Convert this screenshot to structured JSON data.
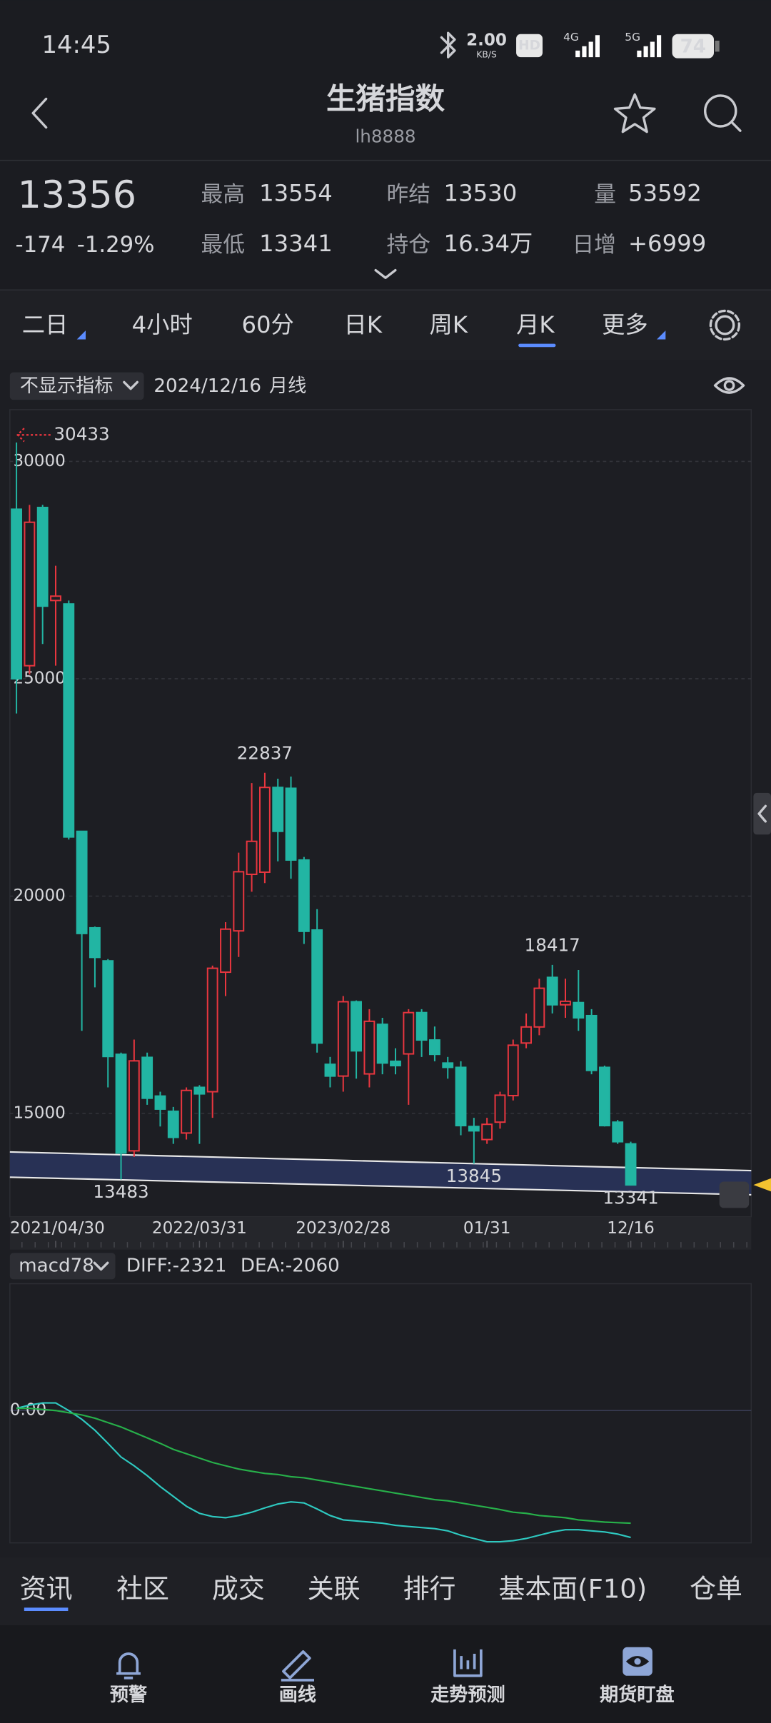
{
  "status_bar": {
    "time": "14:45",
    "speed": "2.00",
    "speed_unit": "KB/S",
    "hd": "HD",
    "net1": "4G",
    "net2": "5G",
    "battery": "74"
  },
  "header": {
    "title": "生猪指数",
    "code": "lh8888"
  },
  "quote": {
    "last": 13356,
    "change": -174,
    "change_pct": "-1.29%",
    "high_label": "最高",
    "high": 13554,
    "low_label": "最低",
    "low": 13341,
    "prev_label": "昨结",
    "prev": 13530,
    "oi_label": "持仓",
    "oi": "16.34万",
    "vol_label": "量",
    "vol": 53592,
    "daily_label": "日增",
    "daily": "+6999"
  },
  "periods": {
    "items": [
      "二日",
      "4小时",
      "60分",
      "日K",
      "周K",
      "月K",
      "更多"
    ],
    "active": 5
  },
  "toolbar": {
    "indicator": "不显示指标",
    "date": "2024/12/16",
    "period": "月线"
  },
  "kline": {
    "type": "candlestick",
    "up_color": "#e8363f",
    "down_color": "#22b5a3",
    "categories": [
      null,
      null,
      null,
      "2021/04/30",
      null,
      null,
      null,
      null,
      null,
      null,
      null,
      null,
      null,
      null,
      "2022/03/31",
      null,
      null,
      null,
      null,
      null,
      null,
      null,
      null,
      null,
      null,
      "2023/02/28",
      null,
      null,
      null,
      null,
      null,
      null,
      null,
      null,
      null,
      null,
      "01/31",
      null,
      null,
      null,
      null,
      null,
      null,
      null,
      null,
      null,
      null,
      "12/16"
    ],
    "open": [
      28900,
      25300,
      28940,
      26800,
      26720,
      21490,
      19270,
      18510,
      16360,
      14140,
      16290,
      15400,
      15050,
      14550,
      15600,
      15500,
      18250,
      19200,
      20500,
      20550,
      22500,
      22480,
      20830,
      19220,
      16130,
      15860,
      17570,
      15910,
      17050,
      16200,
      16370,
      17320,
      16690,
      16160,
      16060,
      14700,
      14400,
      14800,
      15410,
      16620,
      16990,
      18130,
      17500,
      17550,
      17250,
      16060,
      14800,
      14300
    ],
    "high": [
      30433,
      29000,
      29000,
      27600,
      26800,
      21500,
      19300,
      18550,
      16400,
      16700,
      16400,
      15500,
      15150,
      15600,
      15650,
      18400,
      19400,
      21000,
      22600,
      22837,
      22700,
      22750,
      20900,
      19700,
      16300,
      17700,
      17600,
      17400,
      17200,
      16500,
      17400,
      17400,
      17000,
      16300,
      16200,
      14900,
      14900,
      15500,
      16700,
      17300,
      18100,
      18417,
      18100,
      18300,
      17400,
      16100,
      14850,
      14350
    ],
    "low": [
      24200,
      25100,
      25800,
      25300,
      21300,
      16900,
      17900,
      15600,
      13483,
      14000,
      15200,
      14700,
      14300,
      14400,
      14300,
      14900,
      17700,
      18600,
      20100,
      20300,
      20800,
      20400,
      18900,
      16400,
      15600,
      15500,
      15800,
      15600,
      15900,
      15900,
      15200,
      16300,
      16200,
      15800,
      14500,
      13845,
      14300,
      14650,
      15300,
      16500,
      16800,
      17300,
      17200,
      16900,
      15900,
      14700,
      14300,
      13341
    ],
    "close": [
      25000,
      28600,
      26670,
      26900,
      21360,
      19140,
      18590,
      16310,
      14090,
      16210,
      15350,
      15100,
      14450,
      15530,
      15450,
      18340,
      19240,
      20560,
      21260,
      22500,
      21490,
      20830,
      19190,
      16620,
      15860,
      17570,
      16440,
      17120,
      16160,
      16100,
      17320,
      16690,
      16360,
      16060,
      14720,
      14600,
      14750,
      15420,
      16570,
      16990,
      17880,
      17500,
      17580,
      17200,
      15990,
      14720,
      14350,
      13356
    ],
    "ylim": [
      12700,
      31140
    ],
    "yticks": [
      15000,
      20000,
      25000,
      30000
    ],
    "grid": true,
    "annotations": [
      30433,
      22837,
      18417,
      13483,
      13845,
      13341
    ]
  },
  "macd": {
    "type": "line",
    "name": "macd78",
    "diff_label": "DIFF:-2321",
    "dea_label": "DEA:-2060",
    "ylim": [
      -2420,
      2320
    ],
    "yticks": [
      {
        "value": 0,
        "label": "0.00"
      }
    ],
    "series": [
      {
        "color": "#2ec9c0",
        "values": [
          40,
          100,
          140,
          140,
          0,
          -160,
          -360,
          -600,
          -850,
          -1010,
          -1190,
          -1390,
          -1570,
          -1750,
          -1880,
          -1940,
          -1960,
          -1920,
          -1860,
          -1780,
          -1710,
          -1670,
          -1690,
          -1800,
          -1920,
          -2000,
          -2020,
          -2040,
          -2060,
          -2100,
          -2120,
          -2140,
          -2160,
          -2200,
          -2280,
          -2340,
          -2400,
          -2400,
          -2380,
          -2340,
          -2280,
          -2220,
          -2180,
          -2180,
          -2200,
          -2220,
          -2260,
          -2321
        ]
      },
      {
        "color": "#27b04a",
        "values": [
          40,
          40,
          20,
          0,
          -40,
          -80,
          -140,
          -220,
          -300,
          -400,
          -500,
          -600,
          -710,
          -790,
          -870,
          -950,
          -1010,
          -1070,
          -1110,
          -1150,
          -1170,
          -1210,
          -1230,
          -1270,
          -1310,
          -1350,
          -1390,
          -1430,
          -1470,
          -1510,
          -1550,
          -1590,
          -1630,
          -1650,
          -1690,
          -1730,
          -1770,
          -1810,
          -1860,
          -1880,
          -1920,
          -1940,
          -1960,
          -2000,
          -2020,
          -2040,
          -2050,
          -2060
        ]
      }
    ]
  },
  "bottom_tabs": {
    "items": [
      "资讯",
      "社区",
      "成交",
      "关联",
      "排行",
      "基本面(F10)",
      "仓单"
    ],
    "active": 0
  },
  "nav": [
    "预警",
    "画线",
    "走势预测",
    "期货盯盘"
  ]
}
